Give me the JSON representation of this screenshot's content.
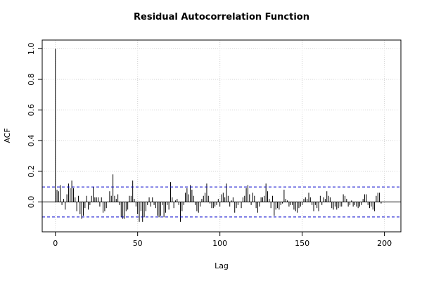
{
  "chart_data": {
    "type": "acf",
    "title": "Residual Autocorrelation Function",
    "x_label": "Lag",
    "y_label": "ACF",
    "x": [
      0,
      1,
      2,
      3,
      4,
      5,
      6,
      7,
      8,
      9,
      10,
      11,
      12,
      13,
      14,
      15,
      16,
      17,
      18,
      19,
      20,
      21,
      22,
      23,
      24,
      25,
      26,
      27,
      28,
      29,
      30,
      31,
      32,
      33,
      34,
      35,
      36,
      37,
      38,
      39,
      40,
      41,
      42,
      43,
      44,
      45,
      46,
      47,
      48,
      49,
      50,
      51,
      52,
      53,
      54,
      55,
      56,
      57,
      58,
      59,
      60,
      61,
      62,
      63,
      64,
      65,
      66,
      67,
      68,
      69,
      70,
      71,
      72,
      73,
      74,
      75,
      76,
      77,
      78,
      79,
      80,
      81,
      82,
      83,
      84,
      85,
      86,
      87,
      88,
      89,
      90,
      91,
      92,
      93,
      94,
      95,
      96,
      97,
      98,
      99,
      100,
      101,
      102,
      103,
      104,
      105,
      106,
      107,
      108,
      109,
      110,
      111,
      112,
      113,
      114,
      115,
      116,
      117,
      118,
      119,
      120,
      121,
      122,
      123,
      124,
      125,
      126,
      127,
      128,
      129,
      130,
      131,
      132,
      133,
      134,
      135,
      136,
      137,
      138,
      139,
      140,
      141,
      142,
      143,
      144,
      145,
      146,
      147,
      148,
      149,
      150,
      151,
      152,
      153,
      154,
      155,
      156,
      157,
      158,
      159,
      160,
      161,
      162,
      163,
      164,
      165,
      166,
      167,
      168,
      169,
      170,
      171,
      172,
      173,
      174,
      175,
      176,
      177,
      178,
      179,
      180,
      181,
      182,
      183,
      184,
      185,
      186,
      187,
      188,
      189,
      190,
      191,
      192,
      193,
      194,
      195,
      196,
      197,
      198,
      199,
      200
    ],
    "values": [
      1,
      0.08,
      0.07,
      0.11,
      -0.02,
      0.02,
      -0.05,
      0.05,
      0.12,
      0.09,
      0.14,
      0.09,
      0.03,
      -0.06,
      0.04,
      -0.08,
      -0.11,
      -0.09,
      -0.04,
      0.04,
      -0.05,
      -0.02,
      0.04,
      0.1,
      0.03,
      0.03,
      0.03,
      -0.03,
      0.03,
      -0.07,
      -0.06,
      -0.04,
      0,
      0.07,
      0.04,
      0.18,
      0.04,
      0.02,
      0.05,
      -0.02,
      -0.1,
      -0.11,
      -0.11,
      -0.06,
      -0.05,
      0.04,
      0.04,
      0.14,
      0.02,
      -0.03,
      -0.08,
      -0.13,
      -0.06,
      -0.13,
      -0.1,
      -0.06,
      -0.02,
      0.03,
      -0.03,
      0.03,
      -0.02,
      -0.04,
      -0.09,
      -0.1,
      -0.09,
      -0.02,
      -0.1,
      -0.07,
      -0.02,
      -0.05,
      0.13,
      0.03,
      -0.04,
      0.01,
      0.02,
      -0.02,
      -0.13,
      -0.06,
      -0.02,
      0.06,
      0.09,
      0.05,
      0.11,
      0.08,
      0.04,
      -0.02,
      -0.06,
      -0.07,
      -0.03,
      0.02,
      0.04,
      0.06,
      0.12,
      0.04,
      -0.01,
      -0.04,
      -0.04,
      -0.03,
      -0.02,
      0.02,
      -0.03,
      0.05,
      0.06,
      0.03,
      0.12,
      0.04,
      -0.03,
      0.01,
      0.03,
      -0.07,
      -0.04,
      -0.02,
      0,
      -0.04,
      0.03,
      0.04,
      0.09,
      0.11,
      0.05,
      -0.02,
      0.06,
      0.04,
      -0.04,
      -0.07,
      -0.03,
      0.03,
      0.03,
      0.04,
      0.12,
      0.07,
      0.02,
      -0.04,
      0.04,
      -0.09,
      -0.05,
      -0.04,
      -0.05,
      -0.02,
      -0.01,
      0.08,
      0.02,
      0.01,
      -0.03,
      -0.02,
      -0.02,
      -0.05,
      -0.06,
      -0.07,
      -0.04,
      -0.03,
      -0.02,
      0.02,
      0.03,
      0.02,
      0.06,
      0.03,
      -0.02,
      -0.06,
      -0.02,
      -0.04,
      -0.06,
      0.04,
      -0.02,
      0.03,
      0.02,
      0.07,
      0.04,
      0.03,
      -0.04,
      -0.05,
      -0.03,
      -0.05,
      -0.04,
      -0.03,
      -0.03,
      0.05,
      0.04,
      0.02,
      -0.03,
      -0.02,
      0.01,
      -0.03,
      -0.02,
      -0.03,
      -0.04,
      -0.03,
      -0.02,
      0.02,
      0.05,
      0.05,
      -0.02,
      -0.04,
      -0.03,
      -0.05,
      -0.06,
      0.04,
      0.06,
      0.06,
      -0.01,
      0,
      0
    ],
    "color": "#000000",
    "conf_limits": [
      -0.098,
      0.098
    ],
    "conf_color": "#0000cc",
    "xlim": [
      -8,
      210
    ],
    "xticks": [
      0,
      50,
      100,
      150,
      200
    ],
    "ylim": [
      -0.195,
      1.057
    ],
    "yticks": [
      {
        "value": 0,
        "label": "0.0"
      },
      0.2,
      0.4,
      0.6,
      0.8,
      {
        "value": 1,
        "label": "1.0"
      }
    ],
    "grid": true
  }
}
